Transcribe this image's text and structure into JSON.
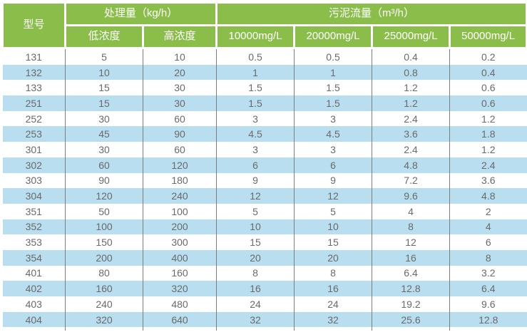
{
  "colors": {
    "header_bg": "#8bbd4b",
    "header_text": "#ffffff",
    "row_bg": "#ffffff",
    "row_alt_bg": "#b9def0",
    "body_text": "#6a6a6a",
    "column_divider": "#7d7d7d"
  },
  "table": {
    "header": {
      "model": "型号",
      "capacity_group": "处理量（kg/h）",
      "capacity_sub": [
        "低浓度",
        "高浓度"
      ],
      "flow_group": "污泥流量（m³/h）",
      "flow_sub": [
        "10000mg/L",
        "20000mg/L",
        "25000mg/L",
        "50000mg/L"
      ]
    }
  },
  "chart_data": {
    "type": "table",
    "title": "",
    "columns": [
      "型号",
      "处理量 低浓度 (kg/h)",
      "处理量 高浓度 (kg/h)",
      "污泥流量 10000mg/L (m³/h)",
      "污泥流量 20000mg/L (m³/h)",
      "污泥流量 25000mg/L (m³/h)",
      "污泥流量 50000mg/L (m³/h)"
    ],
    "rows": [
      [
        "131",
        "5",
        "10",
        "0.5",
        "0.5",
        "0.4",
        "0.2"
      ],
      [
        "132",
        "10",
        "20",
        "1",
        "1",
        "0.8",
        "0.4"
      ],
      [
        "133",
        "15",
        "30",
        "1.5",
        "1.5",
        "1.2",
        "0.6"
      ],
      [
        "251",
        "15",
        "30",
        "1.5",
        "1.5",
        "1.2",
        "0.6"
      ],
      [
        "252",
        "30",
        "60",
        "3",
        "3",
        "2.4",
        "1.2"
      ],
      [
        "253",
        "45",
        "90",
        "4.5",
        "4.5",
        "3.6",
        "1.8"
      ],
      [
        "301",
        "30",
        "60",
        "3",
        "3",
        "2.4",
        "1.2"
      ],
      [
        "302",
        "60",
        "120",
        "6",
        "6",
        "4.8",
        "2.4"
      ],
      [
        "303",
        "90",
        "180",
        "9",
        "9",
        "7.2",
        "3.6"
      ],
      [
        "304",
        "120",
        "240",
        "12",
        "12",
        "9.6",
        "4.8"
      ],
      [
        "351",
        "50",
        "100",
        "5",
        "5",
        "4",
        "2"
      ],
      [
        "352",
        "100",
        "200",
        "10",
        "10",
        "8",
        "4"
      ],
      [
        "353",
        "150",
        "300",
        "15",
        "15",
        "12",
        "6"
      ],
      [
        "354",
        "200",
        "400",
        "20",
        "20",
        "16",
        "8"
      ],
      [
        "401",
        "80",
        "160",
        "8",
        "8",
        "6.4",
        "3.2"
      ],
      [
        "402",
        "160",
        "320",
        "16",
        "16",
        "12.8",
        "6.4"
      ],
      [
        "403",
        "240",
        "480",
        "24",
        "24",
        "19.2",
        "9.6"
      ],
      [
        "404",
        "320",
        "640",
        "32",
        "32",
        "25.6",
        "12.8"
      ]
    ]
  }
}
